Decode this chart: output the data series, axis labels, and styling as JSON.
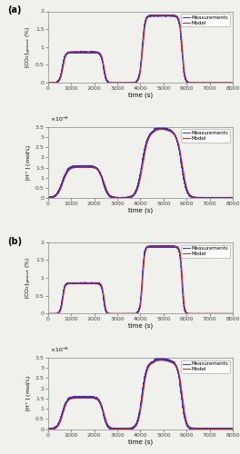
{
  "fig_width": 2.64,
  "fig_height": 5.0,
  "dpi": 100,
  "background_color": "#f0f0ec",
  "panel_labels": [
    "(a)",
    "(b)"
  ],
  "time_max": 8000,
  "time_ticks": [
    0,
    1000,
    2000,
    3000,
    4000,
    5000,
    6000,
    7000,
    8000
  ],
  "xlabel": "time (s)",
  "co2_ylabel": "[CO₂]ₚₐₛₒᵤₜ (%)",
  "hplus_ylabel": "[H⁺] (mol/L)",
  "co2_ylim": [
    0,
    2.0
  ],
  "co2_yticks": [
    0,
    0.5,
    1.0,
    1.5,
    2.0
  ],
  "hplus_ylim": [
    0,
    3.5e-06
  ],
  "hplus_yticks": [
    0,
    5e-07,
    1e-06,
    1.5e-06,
    2e-06,
    2.5e-06,
    3e-06,
    3.5e-06
  ],
  "hplus_scale_label": "3.5 ×10⁻⁶",
  "legend_labels": [
    "Measurements",
    "Model"
  ],
  "meas_color": "#3333bb",
  "model_color": "#cc2222",
  "linewidth": 0.7,
  "CO2_1pct_rise": 650,
  "CO2_1pct_fall": 2430,
  "CO2_2pct_rise": 4100,
  "CO2_2pct_fall": 5820,
  "co2_1pct_level": 0.85,
  "co2_2pct_level": 1.88,
  "hplus_1pct_level": 1.52e-06,
  "hplus_2pct_level": 3.22e-06,
  "hplus_2pct_peak": 3.38e-06,
  "rise_tau_co2": 60,
  "fall_tau_co2": 55,
  "rise_tau_hplus": 120,
  "fall_tau_hplus": 110,
  "meas_lead_co2": 30,
  "meas_lead_hplus": 40,
  "meas_noise_co2": 0.008,
  "meas_noise_hplus": 1.8e-08,
  "meas_extra_hplus_plat1": 4e-08,
  "meas_extra_hplus_plat2": 7e-08
}
